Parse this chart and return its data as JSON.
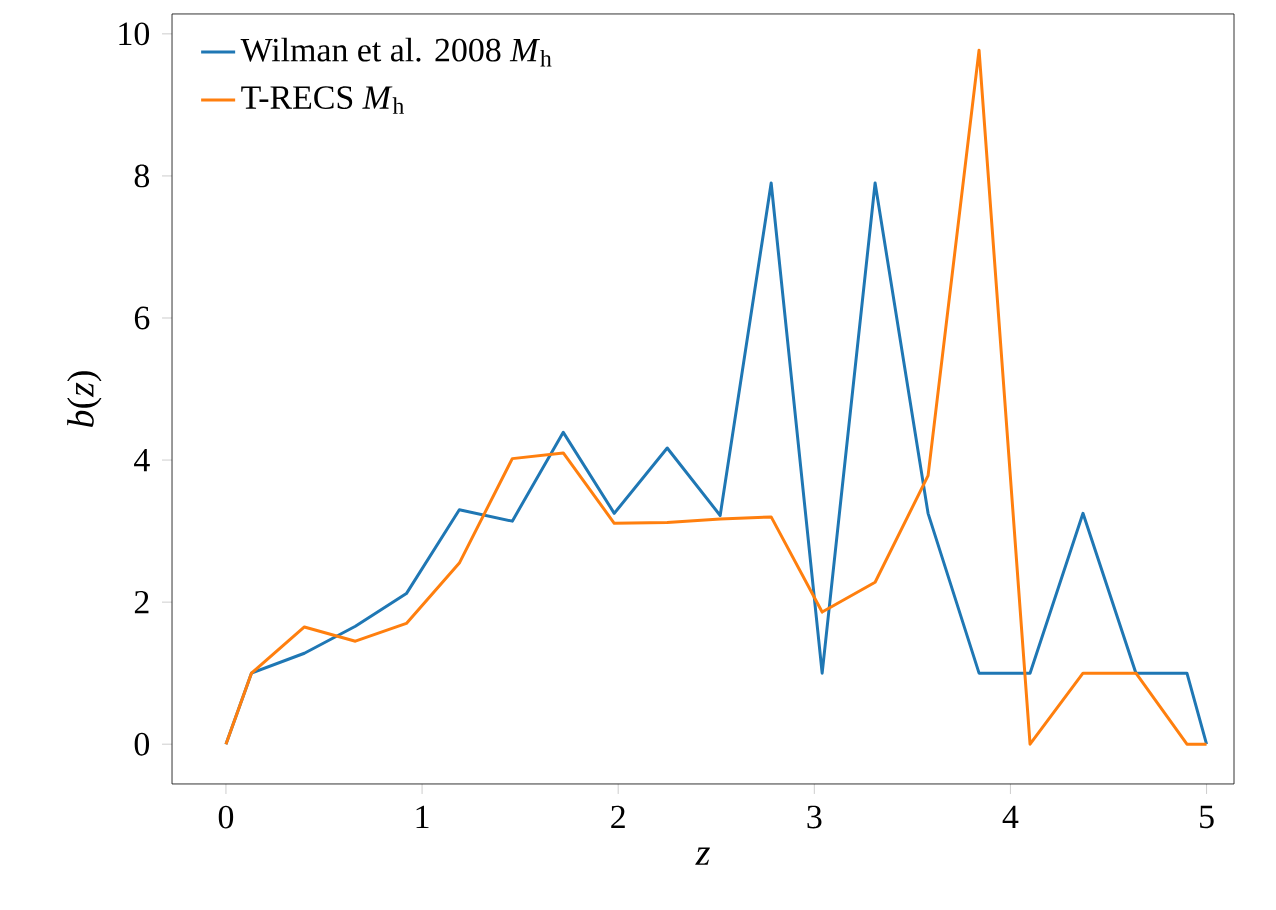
{
  "chart_data": {
    "type": "line",
    "xlabel": "*z*",
    "ylabel": "*b*(*z*)",
    "xlim": [
      -0.275,
      5.14
    ],
    "ylim": [
      -0.56,
      10.28
    ],
    "xticks": [
      0,
      1,
      2,
      3,
      4,
      5
    ],
    "yticks": [
      0,
      2,
      4,
      6,
      8,
      10
    ],
    "legend": "top left",
    "grid": false,
    "marker": "none",
    "line_style": "solid",
    "series": [
      {
        "name": "Wilman et al. 2008 *M*$_{h}$",
        "color": "#1f77b4",
        "x": [
          0,
          0.13,
          0.4,
          0.66,
          0.92,
          1.19,
          1.46,
          1.72,
          1.98,
          2.25,
          2.52,
          2.78,
          3.04,
          3.31,
          3.58,
          3.84,
          4.1,
          4.37,
          4.64,
          4.9,
          5.0
        ],
        "values": [
          0,
          1.0,
          1.28,
          1.66,
          2.12,
          3.3,
          3.14,
          4.39,
          3.25,
          4.17,
          3.22,
          7.9,
          1.0,
          7.9,
          3.25,
          1.0,
          1.0,
          3.25,
          1.0,
          1.0,
          0
        ]
      },
      {
        "name": "T-RECS *M*$_{h}$",
        "color": "#ff7f0e",
        "x": [
          0,
          0.13,
          0.4,
          0.66,
          0.92,
          1.19,
          1.46,
          1.72,
          1.98,
          2.25,
          2.52,
          2.78,
          3.04,
          3.31,
          3.58,
          3.84,
          4.1,
          4.37,
          4.64,
          4.9,
          5.0
        ],
        "values": [
          0,
          1.0,
          1.65,
          1.45,
          1.7,
          2.55,
          4.02,
          4.1,
          3.11,
          3.12,
          3.17,
          3.2,
          1.86,
          2.28,
          3.78,
          9.77,
          0,
          1.0,
          1.0,
          0,
          0
        ]
      }
    ]
  }
}
